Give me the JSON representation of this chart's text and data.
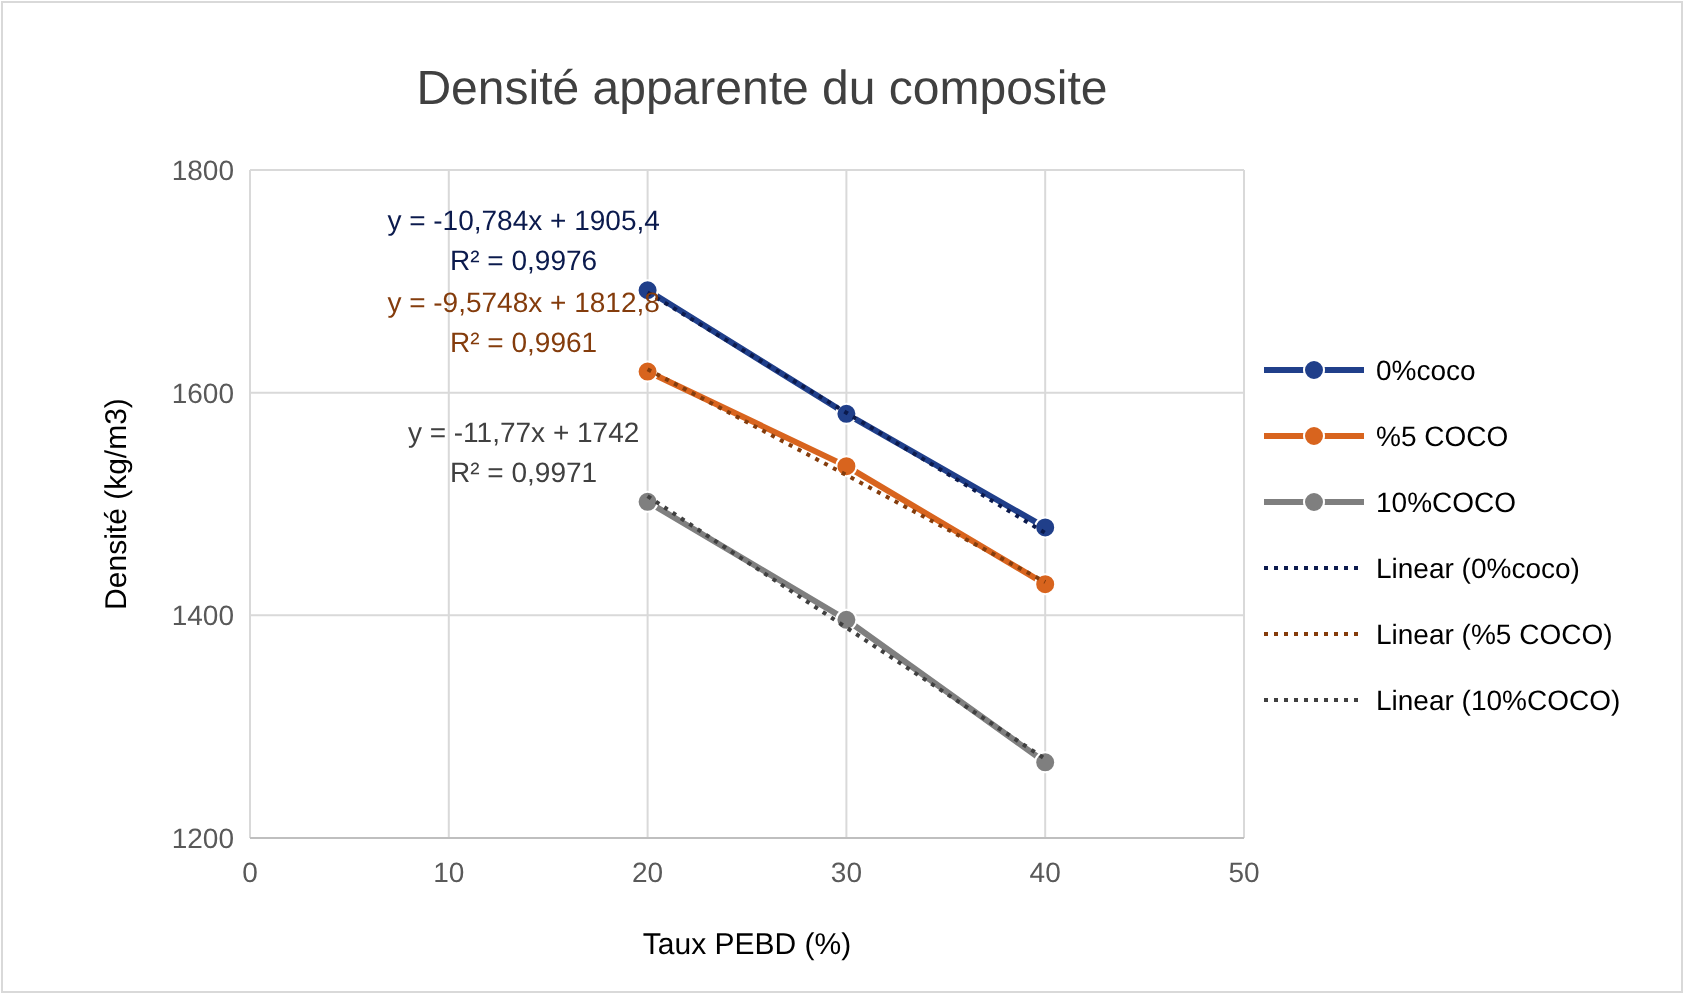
{
  "chart_data": {
    "type": "line",
    "title": "Densité apparente du composite",
    "xlabel": "Taux PEBD (%)",
    "ylabel": "Densité (kg/m3)",
    "x": [
      20,
      30,
      40
    ],
    "xlim": [
      0,
      50
    ],
    "xticks": [
      0,
      10,
      20,
      30,
      40,
      50
    ],
    "ylim": [
      1200,
      1800
    ],
    "yticks": [
      1200,
      1400,
      1600,
      1800
    ],
    "grid": true,
    "legend": "right",
    "marker": "circle",
    "line_style": "solid",
    "series": [
      {
        "name": "0%coco",
        "color": "#203f8a",
        "values": [
          1692,
          1581,
          1479
        ]
      },
      {
        "name": "%5 COCO",
        "color": "#d8641e",
        "values": [
          1619,
          1534,
          1428
        ]
      },
      {
        "name": "10%COCO",
        "color": "#7f7f7f",
        "values": [
          1502,
          1396,
          1268
        ]
      },
      {
        "name": "Linear (0%coco)",
        "color": "#0b1a4d",
        "values": [
          1690,
          1582,
          1474
        ],
        "marker": "none",
        "line_style": "dotted"
      },
      {
        "name": "Linear (%5 COCO)",
        "color": "#843c0c",
        "values": [
          1621,
          1526,
          1430
        ],
        "marker": "none",
        "line_style": "dotted"
      },
      {
        "name": "Linear (10%COCO)",
        "color": "#404040",
        "values": [
          1507,
          1389,
          1271
        ],
        "marker": "none",
        "line_style": "dotted"
      }
    ],
    "annotations": [
      "y = -10,784x + 1905,4",
      "R² = 0,9976",
      "y = -9,5748x + 1812,8",
      "R² = 0,9961",
      "y = -11,77x + 1742",
      "R² = 0,9971"
    ]
  }
}
